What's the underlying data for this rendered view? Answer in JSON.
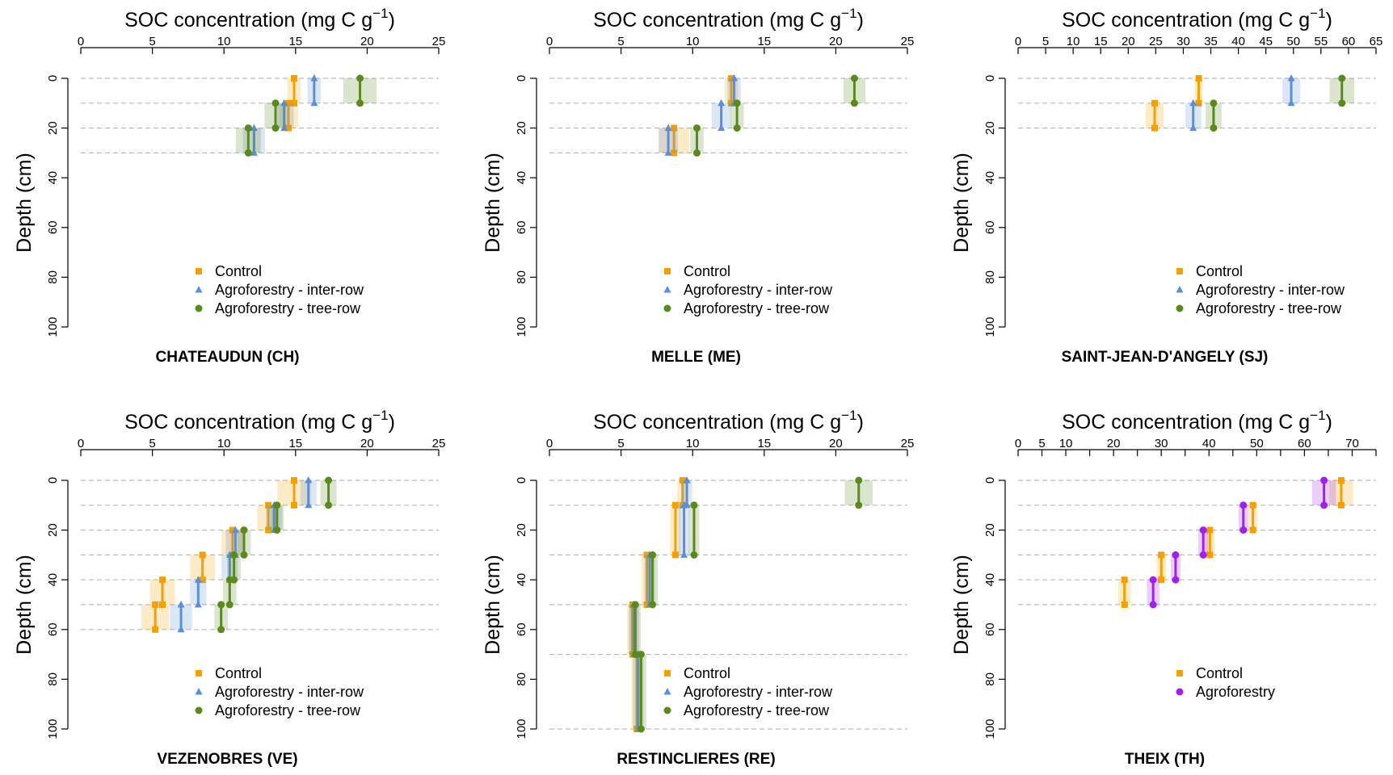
{
  "colors": {
    "control": "#f5a000",
    "inter_row": "#5b8fdc",
    "tree_row": "#5a8a1e",
    "agroforestry": "#a020f0",
    "grid": "#bbbbbb"
  },
  "chart_data": [
    {
      "type": "scatter",
      "title": "CHATEAUDUN (CH)",
      "xlabel": "SOC concentration (mg C g",
      "xlabel_sup": "−1",
      "xlabel_end": ")",
      "ylabel": "Depth (cm)",
      "xlim": [
        0,
        25
      ],
      "ylim": [
        0,
        100
      ],
      "xticks": [
        0,
        5,
        10,
        15,
        20,
        25
      ],
      "yticks": [
        0,
        20,
        40,
        60,
        80,
        100
      ],
      "grid_depths": [
        0,
        10,
        20,
        30
      ],
      "legend": [
        {
          "label": "Control",
          "marker": "square",
          "color_key": "control"
        },
        {
          "label": "Agroforestry - inter-row",
          "marker": "triangle",
          "color_key": "inter_row"
        },
        {
          "label": "Agroforestry - tree-row",
          "marker": "circle",
          "color_key": "tree_row"
        }
      ],
      "series": [
        {
          "name": "Control",
          "color_key": "control",
          "marker": "square",
          "layers": [
            [
              0,
              10,
              14.9,
              0.3
            ],
            [
              10,
              20,
              14.5,
              0.5
            ]
          ]
        },
        {
          "name": "Agroforestry - inter-row",
          "color_key": "inter_row",
          "marker": "triangle",
          "layers": [
            [
              0,
              10,
              16.3,
              0.3
            ],
            [
              10,
              20,
              14.2,
              0.5
            ],
            [
              20,
              30,
              12.1,
              0.6
            ]
          ]
        },
        {
          "name": "Agroforestry - tree-row",
          "color_key": "tree_row",
          "marker": "circle",
          "layers": [
            [
              0,
              10,
              19.5,
              1.0
            ],
            [
              10,
              20,
              13.6,
              0.6
            ],
            [
              20,
              30,
              11.7,
              0.7
            ]
          ]
        }
      ]
    },
    {
      "type": "scatter",
      "title": "MELLE (ME)",
      "xlabel": "SOC concentration (mg C g",
      "xlabel_sup": "−1",
      "xlabel_end": ")",
      "ylabel": "Depth (cm)",
      "xlim": [
        0,
        25
      ],
      "ylim": [
        0,
        100
      ],
      "xticks": [
        0,
        5,
        10,
        15,
        20,
        25
      ],
      "yticks": [
        0,
        20,
        40,
        60,
        80,
        100
      ],
      "grid_depths": [
        0,
        10,
        20,
        30
      ],
      "legend": [
        {
          "label": "Control",
          "marker": "square",
          "color_key": "control"
        },
        {
          "label": "Agroforestry - inter-row",
          "marker": "triangle",
          "color_key": "inter_row"
        },
        {
          "label": "Agroforestry - tree-row",
          "marker": "circle",
          "color_key": "tree_row"
        }
      ],
      "series": [
        {
          "name": "Control",
          "color_key": "control",
          "marker": "square",
          "layers": [
            [
              0,
              10,
              12.7,
              0.3
            ],
            [
              20,
              30,
              8.7,
              0.9
            ]
          ]
        },
        {
          "name": "Agroforestry - inter-row",
          "color_key": "inter_row",
          "marker": "triangle",
          "layers": [
            [
              0,
              10,
              12.9,
              0.3
            ],
            [
              10,
              20,
              12.0,
              0.5
            ],
            [
              20,
              30,
              8.3,
              0.5
            ]
          ]
        },
        {
          "name": "Agroforestry - tree-row",
          "color_key": "tree_row",
          "marker": "circle",
          "layers": [
            [
              0,
              10,
              21.3,
              0.6
            ],
            [
              10,
              20,
              13.1,
              0.3
            ],
            [
              20,
              30,
              10.3,
              0.3
            ]
          ]
        }
      ]
    },
    {
      "type": "scatter",
      "title": "SAINT-JEAN-D'ANGELY (SJ)",
      "xlabel": "SOC concentration (mg C g",
      "xlabel_sup": "−1",
      "xlabel_end": ")",
      "ylabel": "Depth (cm)",
      "xlim": [
        0,
        65
      ],
      "ylim": [
        0,
        100
      ],
      "xticks": [
        0,
        5,
        10,
        15,
        20,
        25,
        30,
        35,
        40,
        45,
        50,
        55,
        60,
        65
      ],
      "yticks": [
        0,
        20,
        40,
        60,
        80,
        100
      ],
      "grid_depths": [
        0,
        10,
        20
      ],
      "legend": [
        {
          "label": "Control",
          "marker": "square",
          "color_key": "control"
        },
        {
          "label": "Agroforestry - inter-row",
          "marker": "triangle",
          "color_key": "inter_row"
        },
        {
          "label": "Agroforestry - tree-row",
          "marker": "circle",
          "color_key": "tree_row"
        }
      ],
      "series": [
        {
          "name": "Control",
          "color_key": "control",
          "marker": "square",
          "layers": [
            [
              0,
              10,
              32.8,
              0.3
            ],
            [
              10,
              20,
              24.8,
              1.2
            ]
          ]
        },
        {
          "name": "Agroforestry - inter-row",
          "color_key": "inter_row",
          "marker": "triangle",
          "layers": [
            [
              0,
              10,
              49.6,
              1.2
            ],
            [
              10,
              20,
              31.8,
              1.0
            ]
          ]
        },
        {
          "name": "Agroforestry - tree-row",
          "color_key": "tree_row",
          "marker": "circle",
          "layers": [
            [
              0,
              10,
              58.8,
              1.8
            ],
            [
              10,
              20,
              35.5,
              1.0
            ]
          ]
        }
      ]
    },
    {
      "type": "scatter",
      "title": "VEZENOBRES (VE)",
      "xlabel": "SOC concentration (mg C g",
      "xlabel_sup": "−1",
      "xlabel_end": ")",
      "ylabel": "Depth (cm)",
      "xlim": [
        0,
        25
      ],
      "ylim": [
        0,
        100
      ],
      "xticks": [
        0,
        5,
        10,
        15,
        20,
        25
      ],
      "yticks": [
        0,
        20,
        40,
        60,
        80,
        100
      ],
      "grid_depths": [
        0,
        10,
        20,
        30,
        40,
        50,
        60
      ],
      "legend": [
        {
          "label": "Control",
          "marker": "square",
          "color_key": "control"
        },
        {
          "label": "Agroforestry - inter-row",
          "marker": "triangle",
          "color_key": "inter_row"
        },
        {
          "label": "Agroforestry - tree-row",
          "marker": "circle",
          "color_key": "tree_row"
        }
      ],
      "series": [
        {
          "name": "Control",
          "color_key": "control",
          "marker": "square",
          "layers": [
            [
              0,
              10,
              14.9,
              1.0
            ],
            [
              10,
              20,
              13.1,
              0.6
            ],
            [
              20,
              30,
              10.6,
              0.6
            ],
            [
              30,
              40,
              8.5,
              0.7
            ],
            [
              40,
              50,
              5.7,
              0.7
            ],
            [
              50,
              60,
              5.2,
              0.8
            ]
          ]
        },
        {
          "name": "Agroforestry - inter-row",
          "color_key": "inter_row",
          "marker": "triangle",
          "layers": [
            [
              0,
              10,
              15.9,
              0.4
            ],
            [
              10,
              20,
              13.5,
              0.4
            ],
            [
              20,
              30,
              10.8,
              0.5
            ],
            [
              30,
              40,
              10.4,
              0.4
            ],
            [
              40,
              50,
              8.2,
              0.4
            ],
            [
              50,
              60,
              7.0,
              0.6
            ]
          ]
        },
        {
          "name": "Agroforestry - tree-row",
          "color_key": "tree_row",
          "marker": "circle",
          "layers": [
            [
              0,
              10,
              17.3,
              0.4
            ],
            [
              10,
              20,
              13.7,
              0.3
            ],
            [
              20,
              30,
              11.4,
              0.3
            ],
            [
              30,
              40,
              10.7,
              0.3
            ],
            [
              40,
              50,
              10.4,
              0.3
            ],
            [
              50,
              60,
              9.8,
              0.3
            ]
          ]
        }
      ]
    },
    {
      "type": "scatter",
      "title": "RESTINCLIERES (RE)",
      "xlabel": "SOC concentration (mg C g",
      "xlabel_sup": "−1",
      "xlabel_end": ")",
      "ylabel": "Depth (cm)",
      "xlim": [
        0,
        25
      ],
      "ylim": [
        0,
        100
      ],
      "xticks": [
        0,
        5,
        10,
        15,
        20,
        25
      ],
      "yticks": [
        0,
        20,
        40,
        60,
        80,
        100
      ],
      "grid_depths": [
        0,
        10,
        30,
        50,
        70,
        100
      ],
      "legend": [
        {
          "label": "Control",
          "marker": "square",
          "color_key": "control"
        },
        {
          "label": "Agroforestry - inter-row",
          "marker": "triangle",
          "color_key": "inter_row"
        },
        {
          "label": "Agroforestry - tree-row",
          "marker": "circle",
          "color_key": "tree_row"
        }
      ],
      "series": [
        {
          "name": "Control",
          "color_key": "control",
          "marker": "square",
          "layers": [
            [
              0,
              10,
              9.3,
              0.2
            ],
            [
              10,
              30,
              8.8,
              0.2
            ],
            [
              30,
              50,
              6.8,
              0.2
            ],
            [
              50,
              70,
              5.8,
              0.2
            ],
            [
              70,
              100,
              6.1,
              0.2
            ]
          ]
        },
        {
          "name": "Agroforestry - inter-row",
          "color_key": "inter_row",
          "marker": "triangle",
          "layers": [
            [
              0,
              10,
              9.6,
              0.2
            ],
            [
              10,
              30,
              9.4,
              0.2
            ],
            [
              30,
              50,
              7.0,
              0.2
            ],
            [
              50,
              70,
              5.9,
              0.2
            ],
            [
              70,
              100,
              6.2,
              0.2
            ]
          ]
        },
        {
          "name": "Agroforestry - tree-row",
          "color_key": "tree_row",
          "marker": "circle",
          "layers": [
            [
              0,
              10,
              21.6,
              0.8
            ],
            [
              10,
              30,
              10.1,
              0.2
            ],
            [
              30,
              50,
              7.2,
              0.2
            ],
            [
              50,
              70,
              6.0,
              0.2
            ],
            [
              70,
              100,
              6.4,
              0.2
            ]
          ]
        }
      ]
    },
    {
      "type": "scatter",
      "title": "THEIX (TH)",
      "xlabel": "SOC concentration (mg C g",
      "xlabel_sup": "−1",
      "xlabel_end": ")",
      "ylabel": "Depth (cm)",
      "xlim": [
        0,
        75
      ],
      "ylim": [
        0,
        100
      ],
      "xticks": [
        0,
        5,
        10,
        20,
        30,
        40,
        50,
        60,
        70
      ],
      "xticks_unlabeled": [
        15,
        25,
        35,
        45,
        55,
        65,
        75
      ],
      "yticks": [
        0,
        20,
        40,
        60,
        80,
        100
      ],
      "grid_depths": [
        0,
        10,
        20,
        30,
        40,
        50
      ],
      "legend": [
        {
          "label": "Control",
          "marker": "square",
          "color_key": "control"
        },
        {
          "label": "Agroforestry",
          "marker": "circle",
          "color_key": "agroforestry"
        }
      ],
      "series": [
        {
          "name": "Control",
          "color_key": "control",
          "marker": "square",
          "layers": [
            [
              0,
              10,
              67.7,
              2.0
            ],
            [
              10,
              20,
              49.2,
              0.5
            ],
            [
              20,
              30,
              40.2,
              0.5
            ],
            [
              30,
              40,
              30.0,
              0.5
            ],
            [
              40,
              50,
              22.3,
              0.8
            ]
          ]
        },
        {
          "name": "Agroforestry",
          "color_key": "agroforestry",
          "marker": "circle",
          "layers": [
            [
              0,
              10,
              64.1,
              2.0
            ],
            [
              10,
              20,
              47.2,
              0.5
            ],
            [
              20,
              30,
              38.8,
              0.5
            ],
            [
              30,
              40,
              33.0,
              0.5
            ],
            [
              40,
              50,
              28.3,
              0.8
            ]
          ]
        }
      ]
    }
  ]
}
